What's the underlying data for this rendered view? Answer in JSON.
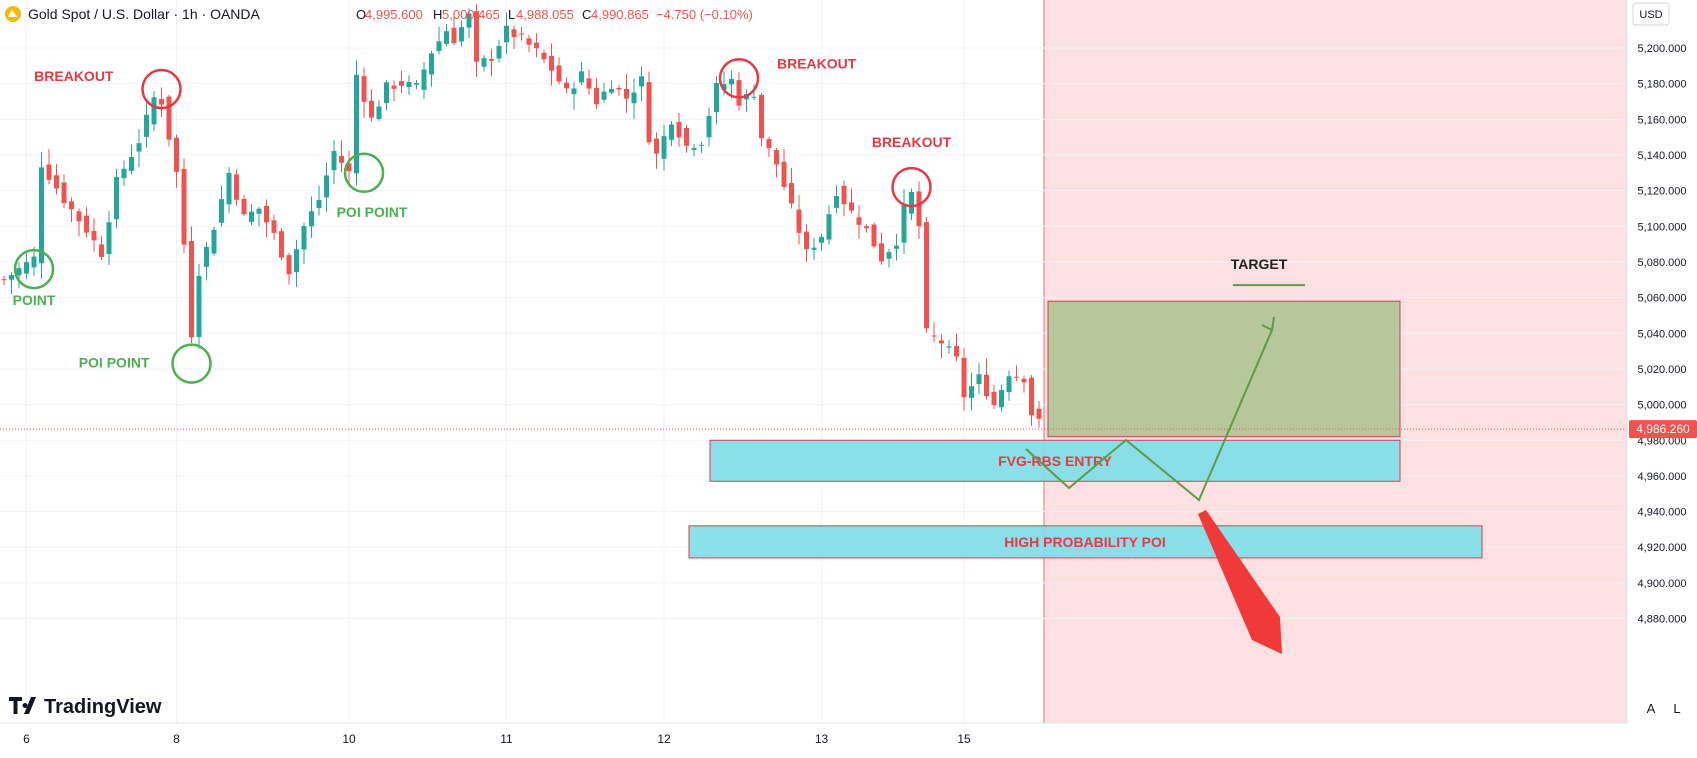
{
  "header": {
    "symbol_icon": "gold-coin-icon",
    "title": "Gold Spot / U.S. Dollar · 1h · OANDA",
    "ohlc": [
      {
        "label": "O",
        "value": "4,995.600"
      },
      {
        "label": "H",
        "value": "5,000.465"
      },
      {
        "label": "L",
        "value": "4,988.055"
      },
      {
        "label": "C",
        "value": "4,990.865"
      }
    ],
    "change": "−4.750 (−0.10%)"
  },
  "currency_label": "USD",
  "current_price_label": "4,986.260",
  "logo_text": "TradingView",
  "scale_buttons": [
    "A",
    "L"
  ],
  "colors": {
    "up": "#26a69a",
    "down": "#ef5350",
    "breakout": "#e53946",
    "poi": "#4caf50",
    "future_zone": "#fde0e1",
    "target_box": "#a9c28f",
    "fvg_box": "#84dde8",
    "arrow": "#f03a3a"
  },
  "chart_data": {
    "type": "candlestick",
    "title": "Gold Spot / U.S. Dollar · 1h · OANDA",
    "ylim": [
      4865,
      5220
    ],
    "y_ticks": [
      "5,200.000",
      "5,180.000",
      "5,160.000",
      "5,140.000",
      "5,120.000",
      "5,100.000",
      "5,080.000",
      "5,060.000",
      "5,040.000",
      "5,020.000",
      "5,000.000",
      "4,980.000",
      "4,960.000",
      "4,940.000",
      "4,920.000",
      "4,900.000",
      "4,880.000"
    ],
    "y_tick_values": [
      5200,
      5180,
      5160,
      5140,
      5120,
      5100,
      5080,
      5060,
      5040,
      5020,
      5000,
      4980,
      4960,
      4940,
      4920,
      4900,
      4880
    ],
    "x_ticks": [
      {
        "label": "6",
        "index": 3
      },
      {
        "label": "8",
        "index": 23
      },
      {
        "label": "10",
        "index": 46
      },
      {
        "label": "11",
        "index": 67
      },
      {
        "label": "12",
        "index": 88
      },
      {
        "label": "13",
        "index": 109
      },
      {
        "label": "15",
        "index": 128
      }
    ],
    "close_points": [
      [
        0,
        5070
      ],
      [
        4,
        5082
      ],
      [
        5,
        5135
      ],
      [
        8,
        5115
      ],
      [
        11,
        5098
      ],
      [
        13,
        5085
      ],
      [
        15,
        5125
      ],
      [
        18,
        5148
      ],
      [
        20,
        5172
      ],
      [
        21,
        5170
      ],
      [
        23,
        5130
      ],
      [
        24,
        5090
      ],
      [
        25,
        5040
      ],
      [
        26,
        5075
      ],
      [
        28,
        5100
      ],
      [
        30,
        5130
      ],
      [
        32,
        5105
      ],
      [
        34,
        5110
      ],
      [
        36,
        5095
      ],
      [
        38,
        5075
      ],
      [
        40,
        5100
      ],
      [
        42,
        5115
      ],
      [
        44,
        5142
      ],
      [
        46,
        5130
      ],
      [
        47,
        5185
      ],
      [
        49,
        5160
      ],
      [
        51,
        5178
      ],
      [
        53,
        5180
      ],
      [
        55,
        5178
      ],
      [
        57,
        5198
      ],
      [
        59,
        5210
      ],
      [
        60,
        5205
      ],
      [
        62,
        5218
      ],
      [
        63,
        5190
      ],
      [
        65,
        5195
      ],
      [
        67,
        5210
      ],
      [
        69,
        5205
      ],
      [
        71,
        5198
      ],
      [
        73,
        5188
      ],
      [
        75,
        5175
      ],
      [
        77,
        5185
      ],
      [
        79,
        5170
      ],
      [
        81,
        5180
      ],
      [
        83,
        5172
      ],
      [
        85,
        5182
      ],
      [
        86,
        5150
      ],
      [
        87,
        5140
      ],
      [
        89,
        5160
      ],
      [
        91,
        5145
      ],
      [
        93,
        5148
      ],
      [
        95,
        5178
      ],
      [
        97,
        5182
      ],
      [
        98,
        5170
      ],
      [
        100,
        5175
      ],
      [
        101,
        5150
      ],
      [
        103,
        5135
      ],
      [
        105,
        5110
      ],
      [
        107,
        5085
      ],
      [
        109,
        5095
      ],
      [
        111,
        5120
      ],
      [
        113,
        5108
      ],
      [
        115,
        5098
      ],
      [
        117,
        5082
      ],
      [
        119,
        5092
      ],
      [
        120,
        5110
      ],
      [
        121,
        5118
      ],
      [
        122,
        5100
      ],
      [
        123,
        5040
      ],
      [
        125,
        5035
      ],
      [
        127,
        5025
      ],
      [
        128,
        5005
      ],
      [
        130,
        5015
      ],
      [
        132,
        5000
      ],
      [
        134,
        5018
      ],
      [
        136,
        5015
      ],
      [
        137,
        4995
      ],
      [
        138,
        4990
      ]
    ],
    "annotations": [
      {
        "text": "BREAKOUT",
        "kind": "breakout",
        "index": 21,
        "price": 5177
      },
      {
        "text": "BREAKOUT",
        "kind": "breakout",
        "index": 98,
        "price": 5183
      },
      {
        "text": "BREAKOUT",
        "kind": "breakout",
        "index": 121,
        "price": 5122
      },
      {
        "text": "POINT",
        "kind": "poi",
        "index": 4,
        "price": 5076
      },
      {
        "text": "POI POINT",
        "kind": "poi",
        "index": 25,
        "price": 5023
      },
      {
        "text": "POI POINT",
        "kind": "poi",
        "index": 48,
        "price": 5130
      }
    ],
    "zones": {
      "target_box": {
        "from": 4982,
        "to": 5058
      },
      "fvg_entry": {
        "text": "FVG-RBS ENTRY",
        "from": 4957,
        "to": 4980
      },
      "high_probability_poi": {
        "text": "HIGH PROBABILITY POI",
        "from": 4914,
        "to": 4932
      },
      "target": {
        "text": "TARGET",
        "price": 5067
      }
    },
    "current_price": 4986.26
  }
}
